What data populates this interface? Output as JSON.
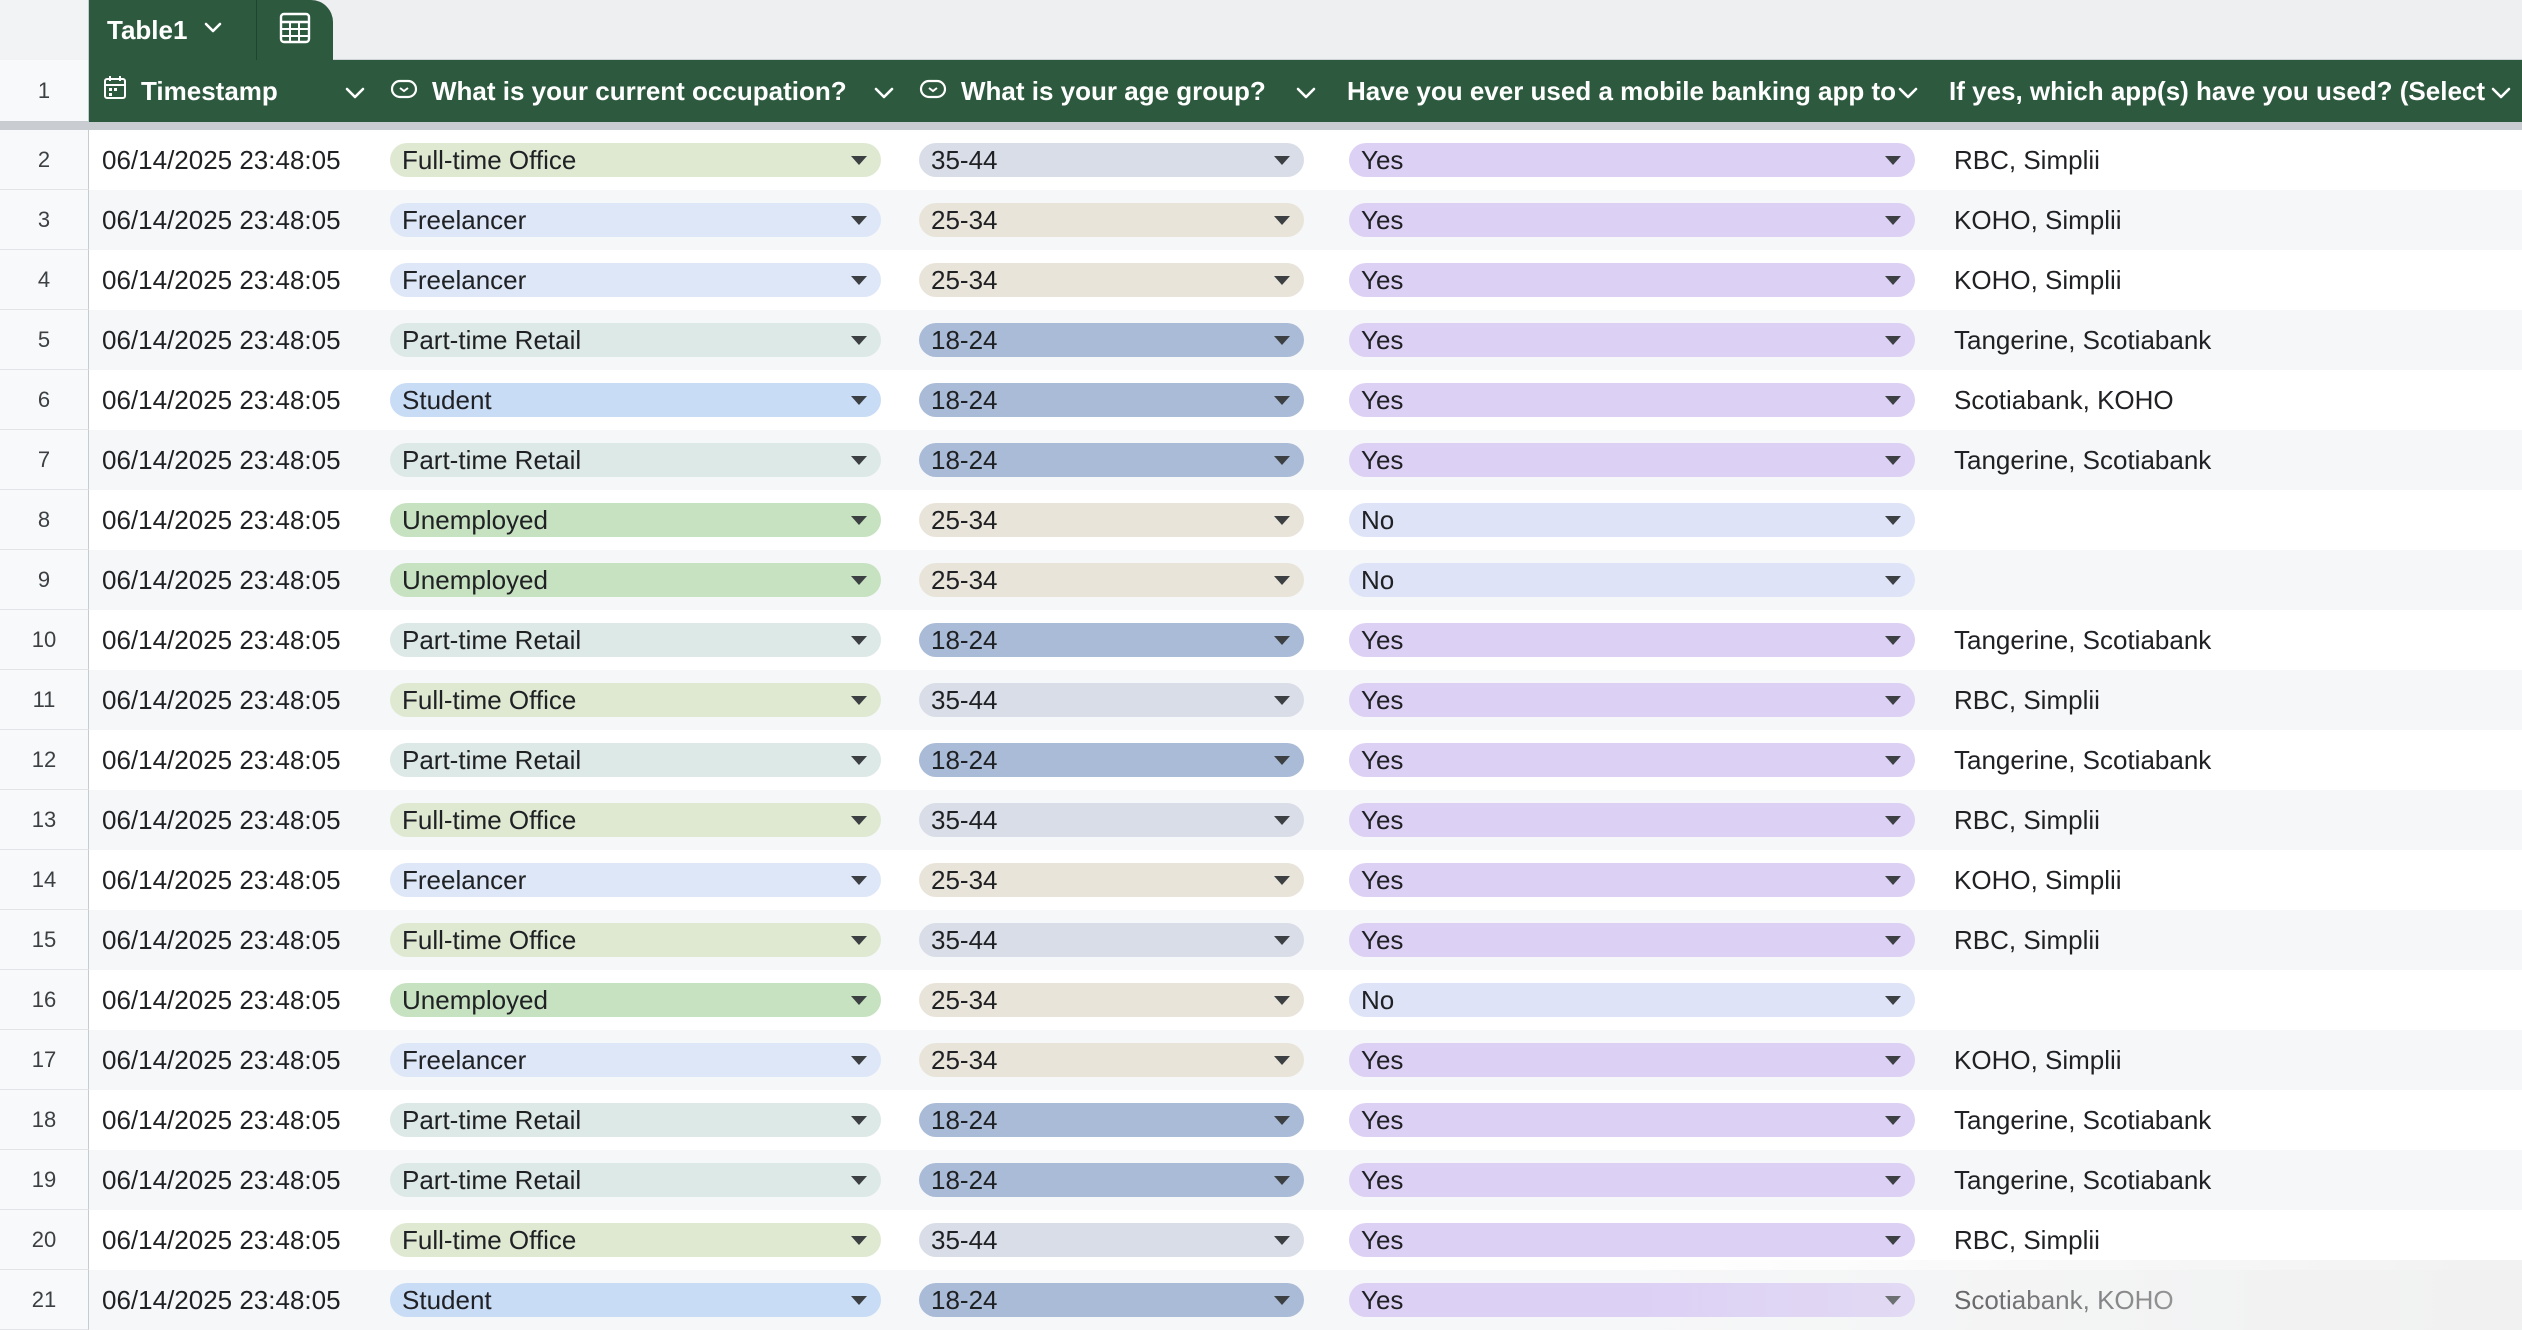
{
  "table_tab": {
    "name": "Table1"
  },
  "header": {
    "row_number": "1",
    "columns": [
      {
        "key": "timestamp",
        "label": "Timestamp",
        "icon": "calendar-icon"
      },
      {
        "key": "occupation",
        "label": "What is your current occupation?",
        "icon": "dropdown-chip-icon"
      },
      {
        "key": "age",
        "label": "What is your age group?",
        "icon": "dropdown-chip-icon"
      },
      {
        "key": "used",
        "label": "Have you ever used a mobile banking app to t",
        "icon": ""
      },
      {
        "key": "apps",
        "label": "If yes, which app(s) have you used? (Select al",
        "icon": ""
      }
    ]
  },
  "chip_colors": {
    "Full-time Office": "#dfe9d2",
    "Freelancer": "#dde7f7",
    "Part-time Retail": "#dde9e7",
    "Student": "#c8dcf6",
    "Unemployed": "#c6e2c0",
    "35-44": "#d9dde8",
    "25-34": "#e9e4d9",
    "18-24": "#a9bbd6",
    "Yes": "#dcd0f5",
    "No": "#dee3f8"
  },
  "header_color": "#2d5a3e",
  "rows": [
    {
      "n": "2",
      "timestamp": "06/14/2025 23:48:05",
      "occupation": "Full-time Office",
      "age": "35-44",
      "used": "Yes",
      "apps": "RBC, Simplii"
    },
    {
      "n": "3",
      "timestamp": "06/14/2025 23:48:05",
      "occupation": "Freelancer",
      "age": "25-34",
      "used": "Yes",
      "apps": "KOHO, Simplii"
    },
    {
      "n": "4",
      "timestamp": "06/14/2025 23:48:05",
      "occupation": "Freelancer",
      "age": "25-34",
      "used": "Yes",
      "apps": "KOHO, Simplii"
    },
    {
      "n": "5",
      "timestamp": "06/14/2025 23:48:05",
      "occupation": "Part-time Retail",
      "age": "18-24",
      "used": "Yes",
      "apps": "Tangerine, Scotiabank"
    },
    {
      "n": "6",
      "timestamp": "06/14/2025 23:48:05",
      "occupation": "Student",
      "age": "18-24",
      "used": "Yes",
      "apps": "Scotiabank, KOHO"
    },
    {
      "n": "7",
      "timestamp": "06/14/2025 23:48:05",
      "occupation": "Part-time Retail",
      "age": "18-24",
      "used": "Yes",
      "apps": "Tangerine, Scotiabank"
    },
    {
      "n": "8",
      "timestamp": "06/14/2025 23:48:05",
      "occupation": "Unemployed",
      "age": "25-34",
      "used": "No",
      "apps": ""
    },
    {
      "n": "9",
      "timestamp": "06/14/2025 23:48:05",
      "occupation": "Unemployed",
      "age": "25-34",
      "used": "No",
      "apps": ""
    },
    {
      "n": "10",
      "timestamp": "06/14/2025 23:48:05",
      "occupation": "Part-time Retail",
      "age": "18-24",
      "used": "Yes",
      "apps": "Tangerine, Scotiabank"
    },
    {
      "n": "11",
      "timestamp": "06/14/2025 23:48:05",
      "occupation": "Full-time Office",
      "age": "35-44",
      "used": "Yes",
      "apps": "RBC, Simplii"
    },
    {
      "n": "12",
      "timestamp": "06/14/2025 23:48:05",
      "occupation": "Part-time Retail",
      "age": "18-24",
      "used": "Yes",
      "apps": "Tangerine, Scotiabank"
    },
    {
      "n": "13",
      "timestamp": "06/14/2025 23:48:05",
      "occupation": "Full-time Office",
      "age": "35-44",
      "used": "Yes",
      "apps": "RBC, Simplii"
    },
    {
      "n": "14",
      "timestamp": "06/14/2025 23:48:05",
      "occupation": "Freelancer",
      "age": "25-34",
      "used": "Yes",
      "apps": "KOHO, Simplii"
    },
    {
      "n": "15",
      "timestamp": "06/14/2025 23:48:05",
      "occupation": "Full-time Office",
      "age": "35-44",
      "used": "Yes",
      "apps": "RBC, Simplii"
    },
    {
      "n": "16",
      "timestamp": "06/14/2025 23:48:05",
      "occupation": "Unemployed",
      "age": "25-34",
      "used": "No",
      "apps": ""
    },
    {
      "n": "17",
      "timestamp": "06/14/2025 23:48:05",
      "occupation": "Freelancer",
      "age": "25-34",
      "used": "Yes",
      "apps": "KOHO, Simplii"
    },
    {
      "n": "18",
      "timestamp": "06/14/2025 23:48:05",
      "occupation": "Part-time Retail",
      "age": "18-24",
      "used": "Yes",
      "apps": "Tangerine, Scotiabank"
    },
    {
      "n": "19",
      "timestamp": "06/14/2025 23:48:05",
      "occupation": "Part-time Retail",
      "age": "18-24",
      "used": "Yes",
      "apps": "Tangerine, Scotiabank"
    },
    {
      "n": "20",
      "timestamp": "06/14/2025 23:48:05",
      "occupation": "Full-time Office",
      "age": "35-44",
      "used": "Yes",
      "apps": "RBC, Simplii"
    },
    {
      "n": "21",
      "timestamp": "06/14/2025 23:48:05",
      "occupation": "Student",
      "age": "18-24",
      "used": "Yes",
      "apps": "Scotiabank, KOHO"
    }
  ]
}
